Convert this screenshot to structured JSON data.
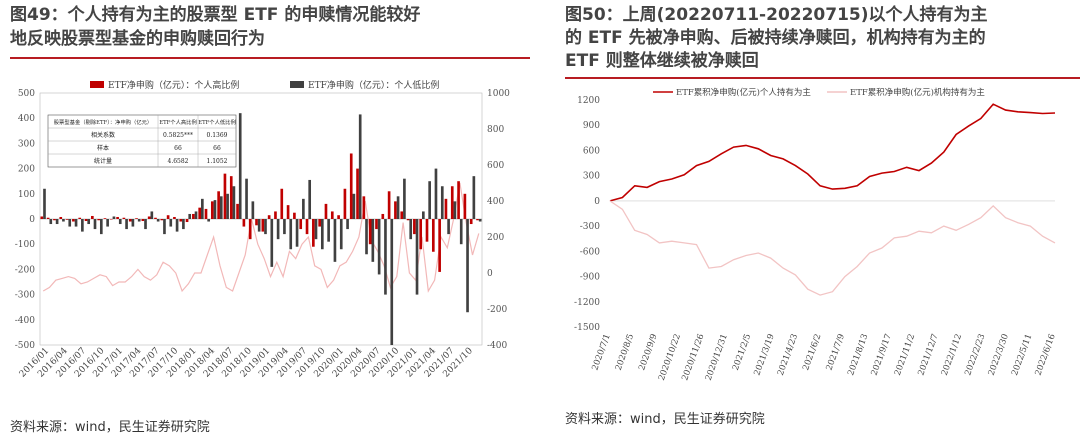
{
  "left": {
    "title_lines": [
      "图49：个人持有为主的股票型 ETF 的申赎情况能较好",
      "地反映股票型基金的申购赎回行为"
    ],
    "source": "资料来源：wind，民生证券研究院"
  },
  "right": {
    "title_lines": [
      "图50：上周(20220711-20220715)以个人持有为主",
      "的 ETF 先被净申购、后被持续净赎回，机构持有为主的",
      "ETF 则整体继续被净赎回"
    ],
    "source": "资料来源：wind，民生证券研究院"
  },
  "chart_data": [
    {
      "type": "bar",
      "legend": [
        "ETF净申购（亿元）：个人高比例",
        "ETF净申购（亿元）：个人低比例"
      ],
      "legend_placement": "top",
      "colors": {
        "individual_high": "#c00000",
        "individual_low": "#404040",
        "line": "#f2b8b8"
      },
      "ylim_left": [
        -500,
        500
      ],
      "yticks_left": [
        -500,
        -400,
        -300,
        -200,
        -100,
        0,
        100,
        200,
        300,
        400,
        500
      ],
      "ylim_right": [
        -400,
        1000
      ],
      "yticks_right": [
        -400,
        -200,
        0,
        200,
        400,
        600,
        800,
        1000
      ],
      "x_tick_labels": [
        "2016/01",
        "2016/04",
        "2016/07",
        "2016/10",
        "2017/01",
        "2017/04",
        "2017/07",
        "2017/10",
        "2018/01",
        "2018/04",
        "2018/07",
        "2018/10",
        "2019/01",
        "2019/04",
        "2019/07",
        "2019/10",
        "2020/01",
        "2020/04",
        "2020/07",
        "2020/10",
        "2021/01",
        "2021/04",
        "2021/07",
        "2021/10"
      ],
      "series": [
        {
          "key": "individual_high",
          "values": [
            10,
            5,
            -5,
            8,
            -3,
            -10,
            5,
            -8,
            12,
            -5,
            3,
            -2,
            8,
            5,
            -10,
            3,
            -8,
            10,
            5,
            -5,
            15,
            8,
            -10,
            -12,
            20,
            45,
            40,
            70,
            110,
            180,
            170,
            60,
            -30,
            -80,
            -25,
            -50,
            15,
            30,
            120,
            55,
            25,
            -40,
            -60,
            -110,
            -30,
            60,
            30,
            15,
            120,
            260,
            200,
            90,
            -100,
            -40,
            20,
            110,
            70,
            30,
            -5,
            -60,
            -120,
            -90,
            -130,
            -210,
            80,
            130,
            150,
            100,
            -20,
            -5
          ]
        },
        {
          "key": "individual_low",
          "values": [
            120,
            -20,
            -20,
            -10,
            -30,
            -30,
            -50,
            -20,
            -40,
            -60,
            -30,
            10,
            -20,
            -40,
            -30,
            -10,
            -40,
            30,
            -10,
            -60,
            -30,
            -50,
            -40,
            20,
            30,
            80,
            -10,
            75,
            90,
            100,
            130,
            420,
            160,
            70,
            -50,
            -60,
            -190,
            -80,
            -60,
            -120,
            -110,
            80,
            155,
            -80,
            -120,
            -90,
            -170,
            -120,
            -40,
            100,
            415,
            -140,
            -170,
            -220,
            -300,
            -500,
            90,
            160,
            -80,
            -300,
            30,
            150,
            200,
            130,
            -60,
            70,
            -100,
            -370,
            170,
            -10
          ]
        },
        {
          "key": "line",
          "values": [
            -100,
            -80,
            -40,
            -30,
            -20,
            -30,
            -60,
            -50,
            -30,
            -10,
            -20,
            -70,
            -50,
            -50,
            -20,
            20,
            -20,
            -40,
            -10,
            60,
            40,
            0,
            -100,
            -60,
            0,
            0,
            100,
            200,
            40,
            -80,
            -100,
            0,
            100,
            300,
            160,
            80,
            -20,
            60,
            -20,
            120,
            80,
            160,
            200,
            40,
            20,
            -80,
            -40,
            40,
            60,
            120,
            200,
            400,
            180,
            120,
            40,
            -80,
            -20,
            280,
            0,
            -40,
            200,
            -100,
            -40,
            200,
            140,
            300,
            500,
            280,
            100,
            220
          ]
        }
      ],
      "inset_table": {
        "header": [
          "股票型基金（剔除ETF）：净申购（亿元）",
          "ETF个人高比例",
          "ETF个人低比例"
        ],
        "rows": [
          [
            "相关系数",
            "0.5825***",
            "0.1369"
          ],
          [
            "样本",
            "66",
            "66"
          ],
          [
            "统计量",
            "4.6582",
            "1.1052"
          ]
        ]
      }
    },
    {
      "type": "line",
      "legend": [
        "ETF累积净申购(亿元)个人持有为主",
        "ETF累积净申购(亿元)机构持有为主"
      ],
      "legend_placement": "top",
      "colors": {
        "individual": "#c00000",
        "institution": "#f2c4c4"
      },
      "ylim": [
        -1500,
        1200
      ],
      "yticks": [
        -1500,
        -1200,
        -900,
        -600,
        -300,
        0,
        300,
        600,
        900,
        1200
      ],
      "x_tick_labels": [
        "2020/7/1",
        "2020/8/5",
        "2020/9/9",
        "2020/10/22",
        "2020/11/26",
        "2020/12/31",
        "2021/2/5",
        "2021/3/19",
        "2021/4/23",
        "2021/6/2",
        "2021/7/9",
        "2021/8/13",
        "2021/9/17",
        "2021/11/2",
        "2021/12/7",
        "2022/1/12",
        "2022/2/23",
        "2022/3/30",
        "2022/5/11",
        "2022/6/16"
      ],
      "series": [
        {
          "key": "individual",
          "values": [
            0,
            40,
            180,
            160,
            230,
            260,
            310,
            420,
            470,
            560,
            640,
            660,
            620,
            540,
            500,
            420,
            320,
            180,
            140,
            150,
            180,
            290,
            330,
            350,
            400,
            360,
            450,
            580,
            790,
            890,
            980,
            1150,
            1080,
            1060,
            1050,
            1040,
            1045
          ]
        },
        {
          "key": "institution",
          "values": [
            0,
            -100,
            -350,
            -400,
            -500,
            -480,
            -500,
            -520,
            -800,
            -780,
            -700,
            -650,
            -620,
            -680,
            -800,
            -880,
            -1050,
            -1120,
            -1080,
            -900,
            -780,
            -620,
            -560,
            -440,
            -420,
            -360,
            -380,
            -300,
            -350,
            -280,
            -200,
            -60,
            -200,
            -260,
            -300,
            -420,
            -500
          ]
        }
      ]
    }
  ]
}
